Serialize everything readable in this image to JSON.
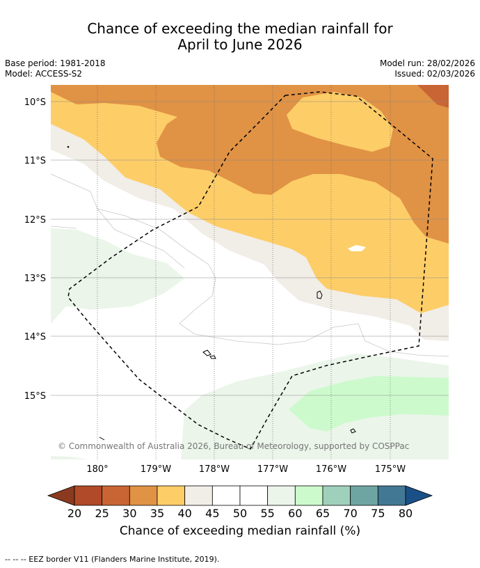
{
  "title": {
    "line1": "Chance of exceeding the median rainfall for",
    "line2": "April to June 2026"
  },
  "meta": {
    "base_period": "Base period: 1981-2018",
    "model": "Model: ACCESS-S2",
    "model_run": "Model run: 28/02/2026",
    "issued": "Issued: 02/03/2026"
  },
  "map": {
    "lat_labels": [
      "10°S",
      "11°S",
      "12°S",
      "13°S",
      "14°S",
      "15°S"
    ],
    "lon_labels": [
      "180°",
      "179°W",
      "178°W",
      "177°W",
      "176°W",
      "175°W"
    ],
    "copyright": "© Commonwealth of Australia 2026, Bureau of Meteorology, supported by COSPPac"
  },
  "legend": {
    "title": "Chance of exceeding median rainfall (%)",
    "tick_labels": [
      "20",
      "25",
      "30",
      "35",
      "40",
      "45",
      "50",
      "55",
      "60",
      "65",
      "70",
      "75",
      "80"
    ],
    "colors": {
      "below_20": "#8b3a1f",
      "20_25": "#b04a28",
      "25_30": "#c96534",
      "30_35": "#e09245",
      "35_40": "#fdcd68",
      "40_45": "#f1ede7",
      "45_50": "#ffffff",
      "50_55": "#ffffff",
      "55_60": "#ebf5ea",
      "60_65": "#cdfacd",
      "65_70": "#9fd0bb",
      "70_75": "#6ea5a3",
      "75_80": "#427893",
      "above_80": "#1a5087"
    }
  },
  "footnote": "--  --  -- EEZ border V11 (Flanders Marine Institute, 2019)."
}
